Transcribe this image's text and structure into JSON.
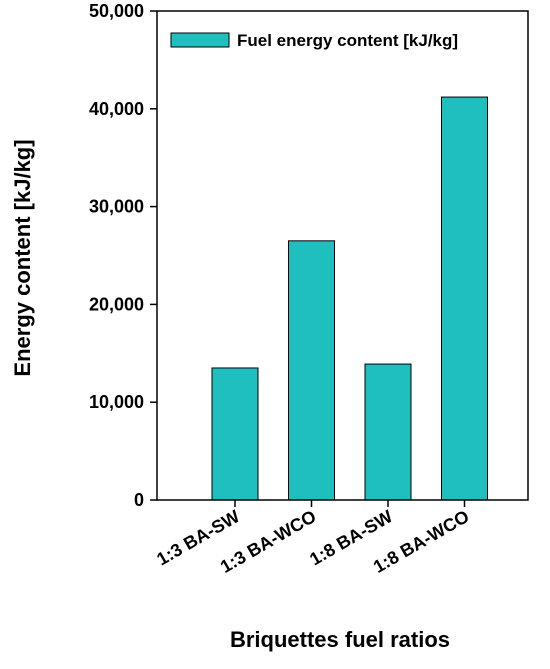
{
  "chart_data": {
    "type": "bar",
    "categories": [
      "1:3 BA-SW",
      "1:3 BA-WCO",
      "1:8 BA-SW",
      "1:8 BA-WCO"
    ],
    "series": [
      {
        "name": "Fuel energy content [kJ/kg]",
        "values": [
          13500,
          26500,
          13900,
          41200
        ]
      }
    ],
    "xlabel": "Briquettes fuel ratios",
    "ylabel": "Energy content [kJ/kg]",
    "ylim": [
      0,
      50000
    ],
    "yticks": [
      0,
      10000,
      20000,
      30000,
      40000,
      50000
    ],
    "ytick_labels": [
      "0",
      "10,000",
      "20,000",
      "30,000",
      "40,000",
      "50,000"
    ],
    "grid": false,
    "legend_position": "top-right",
    "bar_color": "#1fbfbf",
    "bar_edge_color": "#000000"
  }
}
